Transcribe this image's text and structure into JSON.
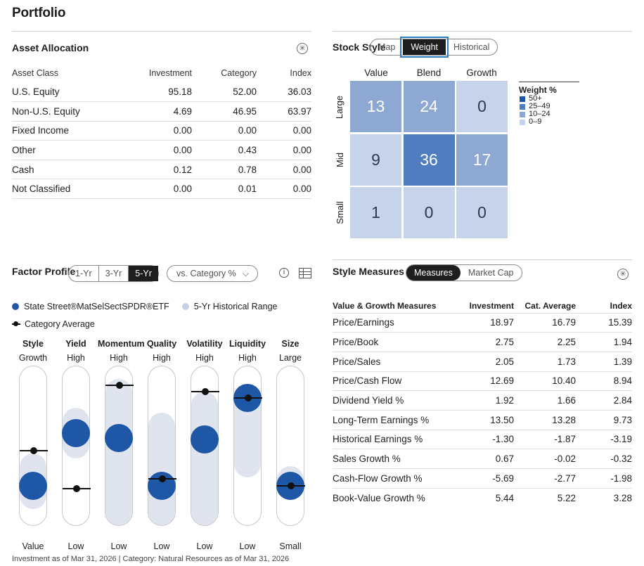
{
  "page_title": "Portfolio",
  "asset_allocation": {
    "title": "Asset Allocation",
    "columns": [
      "Asset Class",
      "Investment",
      "Category",
      "Index"
    ],
    "rows": [
      [
        "U.S. Equity",
        "95.18",
        "52.00",
        "36.03"
      ],
      [
        "Non-U.S. Equity",
        "4.69",
        "46.95",
        "63.97"
      ],
      [
        "Fixed Income",
        "0.00",
        "0.00",
        "0.00"
      ],
      [
        "Other",
        "0.00",
        "0.43",
        "0.00"
      ],
      [
        "Cash",
        "0.12",
        "0.78",
        "0.00"
      ],
      [
        "Not Classified",
        "0.00",
        "0.01",
        "0.00"
      ]
    ]
  },
  "stock_style": {
    "title": "Stock Style",
    "tabs": [
      "Map",
      "Weight",
      "Historical"
    ],
    "active_tab": "Weight",
    "col_labels": [
      "Value",
      "Blend",
      "Growth"
    ],
    "row_labels": [
      "Large",
      "Mid",
      "Small"
    ],
    "cells": [
      [
        "13",
        "24",
        "0"
      ],
      [
        "9",
        "36",
        "17"
      ],
      [
        "1",
        "0",
        "0"
      ]
    ],
    "cell_colors": [
      [
        "#8ea8d4",
        "#8ea8d4",
        "#c6d3e8"
      ],
      [
        "#c6d3e8",
        "#4f7dc0",
        "#8ea8d4"
      ],
      [
        "#c6d3e8",
        "#c6d3e8",
        "#c6d3e8"
      ]
    ],
    "legend_title": "Weight %",
    "legend": [
      {
        "label": "50+",
        "color": "#1f57a7"
      },
      {
        "label": "25–49",
        "color": "#4f7dc0"
      },
      {
        "label": "10–24",
        "color": "#8ea8d4"
      },
      {
        "label": "0–9",
        "color": "#c6d3e8"
      }
    ]
  },
  "factor_profile": {
    "title": "Factor Profile",
    "period_tabs": [
      "1-Yr",
      "3-Yr",
      "5-Yr"
    ],
    "active_period": "5-Yr",
    "compare_dropdown": "vs. Category %",
    "info_icon": "i",
    "legend": {
      "fund": "State Street®MatSelSectSPDR®ETF",
      "range": "5-Yr Historical Range",
      "category": "Category Average"
    },
    "factors": [
      {
        "name": "Style",
        "high": "Growth",
        "low": "Value",
        "fund": 0.25,
        "range": [
          0.1,
          0.45
        ],
        "category": 0.47
      },
      {
        "name": "Yield",
        "high": "High",
        "low": "Low",
        "fund": 0.58,
        "range": [
          0.42,
          0.74
        ],
        "category": 0.23
      },
      {
        "name": "Momentum",
        "high": "High",
        "low": "Low",
        "fund": 0.55,
        "range": [
          0.0,
          0.92
        ],
        "category": 0.88
      },
      {
        "name": "Quality",
        "high": "High",
        "low": "Low",
        "fund": 0.25,
        "range": [
          0.0,
          0.71
        ],
        "category": 0.29
      },
      {
        "name": "Volatility",
        "high": "High",
        "low": "Low",
        "fund": 0.54,
        "range": [
          0.0,
          0.84
        ],
        "category": 0.84
      },
      {
        "name": "Liquidity",
        "high": "High",
        "low": "Low",
        "fund": 0.8,
        "range": [
          0.3,
          0.84
        ],
        "category": 0.8
      },
      {
        "name": "Size",
        "high": "Large",
        "low": "Small",
        "fund": 0.25,
        "range": [
          0.16,
          0.37
        ],
        "category": 0.25
      }
    ],
    "footnote": "Investment as of Mar 31, 2026 | Category: Natural Resources as of Mar 31, 2026"
  },
  "style_measures": {
    "title": "Style Measures",
    "tabs": [
      "Measures",
      "Market Cap"
    ],
    "active_tab": "Measures",
    "columns": [
      "Value & Growth Measures",
      "Investment",
      "Cat. Average",
      "Index"
    ],
    "rows": [
      [
        "Price/Earnings",
        "18.97",
        "16.79",
        "15.39"
      ],
      [
        "Price/Book",
        "2.75",
        "2.25",
        "1.94"
      ],
      [
        "Price/Sales",
        "2.05",
        "1.73",
        "1.39"
      ],
      [
        "Price/Cash Flow",
        "12.69",
        "10.40",
        "8.94"
      ],
      [
        "Dividend Yield %",
        "1.92",
        "1.66",
        "2.84"
      ],
      [
        "Long-Term Earnings %",
        "13.50",
        "13.28",
        "9.73"
      ],
      [
        "Historical Earnings %",
        "-1.30",
        "-1.87",
        "-3.19"
      ],
      [
        "Sales Growth %",
        "0.67",
        "-0.02",
        "-0.32"
      ],
      [
        "Cash-Flow Growth %",
        "-5.69",
        "-2.77",
        "-1.98"
      ],
      [
        "Book-Value Growth %",
        "5.44",
        "5.22",
        "3.28"
      ]
    ]
  },
  "colors": {
    "fund": "#1f57a7",
    "range": "#dfe4ef",
    "category": "#111111"
  }
}
